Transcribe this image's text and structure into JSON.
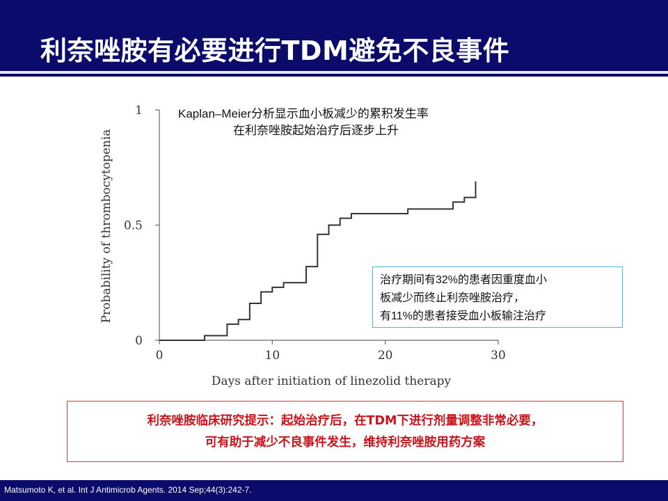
{
  "slide": {
    "title": "利奈唑胺有必要进行TDM避免不良事件",
    "callout": {
      "lines": [
        "治疗期间有32%的患者因重度血小",
        "板减少而终止利奈唑胺治疗，",
        "有11%的患者接受血小板输注治疗"
      ]
    },
    "conclusion": {
      "lines": [
        "利奈唑胺临床研究提示：起始治疗后，在TDM下进行剂量调整非常必要，",
        "可有助于减少不良事件发生，维持利奈唑胺用药方案"
      ]
    },
    "citation": "Matsumoto K, et al. Int J Antimicrob Agents. 2014 Sep;44(3):242-7.",
    "colors": {
      "header_bg": "#0b0b6b",
      "conclusion_text": "#c8141a",
      "conclusion_border": "#d23b3b",
      "callout_border": "#4bb3d3"
    }
  },
  "chart_data": {
    "type": "line",
    "title_lines": [
      "Kaplan–Meier分析显示血小板减少的累积发生率",
      "在利奈唑胺起始治疗后逐步上升"
    ],
    "xlabel": "Days after initiation of linezolid therapy",
    "ylabel": "Probability of thrombocytopenia",
    "xlim": [
      0,
      30
    ],
    "ylim": [
      0,
      1
    ],
    "xticks": [
      0,
      10,
      20,
      30
    ],
    "yticks": [
      0,
      0.5,
      1
    ],
    "ytick_labels": [
      "0",
      "0.5",
      "1"
    ],
    "grid": false,
    "step": true,
    "series": [
      {
        "x": [
          0,
          4,
          6,
          7,
          8,
          9,
          10,
          11,
          13,
          14,
          15,
          16,
          17,
          22,
          25,
          26,
          27,
          28
        ],
        "y": [
          0,
          0.02,
          0.07,
          0.09,
          0.16,
          0.21,
          0.23,
          0.25,
          0.32,
          0.46,
          0.5,
          0.53,
          0.55,
          0.57,
          0.57,
          0.6,
          0.62,
          0.69
        ]
      }
    ]
  }
}
